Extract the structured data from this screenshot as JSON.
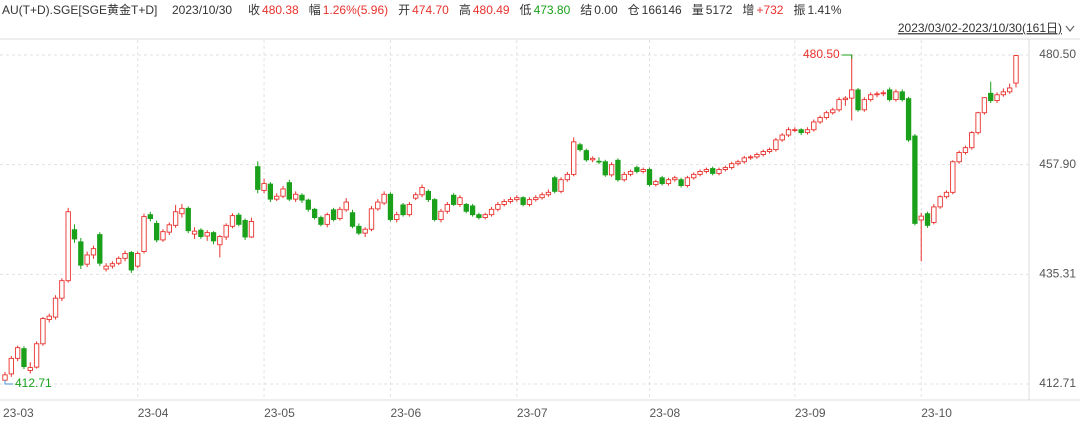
{
  "quote": {
    "symbol": "AU(T+D).SGE[SGE黄金T+D]",
    "date": "2023/10/30",
    "fields": [
      {
        "label": "收",
        "value": "480.38",
        "color": "#e8322e"
      },
      {
        "label": "幅",
        "value": "1.26%(5.96)",
        "color": "#e8322e"
      },
      {
        "label": "开",
        "value": "474.70",
        "color": "#e8322e"
      },
      {
        "label": "高",
        "value": "480.49",
        "color": "#e8322e"
      },
      {
        "label": "低",
        "value": "473.80",
        "color": "#1aa01a"
      },
      {
        "label": "结",
        "value": "0.00",
        "color": "#333333"
      },
      {
        "label": "仓",
        "value": "166146",
        "color": "#333333"
      },
      {
        "label": "量",
        "value": "5172",
        "color": "#333333"
      },
      {
        "label": "增",
        "value": "+732",
        "color": "#e8322e"
      },
      {
        "label": "振",
        "value": "1.41%",
        "color": "#333333"
      }
    ],
    "range": "2023/03/02-2023/10/30(161日)"
  },
  "chart_data": {
    "type": "candlestick",
    "up_color": "#e8322e",
    "down_color": "#1aa01a",
    "grid": true,
    "ylim": [
      409.42,
      483.58
    ],
    "yticks": [
      412.71,
      435.31,
      {
        "value": 457.9,
        "label": "457.90"
      },
      {
        "value": 480.5,
        "label": "480.50"
      }
    ],
    "max_label": {
      "value": 480.5,
      "label": "480.50"
    },
    "min_label": {
      "value": 412.71,
      "label": "412.71"
    },
    "categories": [
      "23-03",
      null,
      null,
      null,
      null,
      null,
      null,
      null,
      null,
      null,
      null,
      null,
      null,
      null,
      null,
      null,
      null,
      null,
      null,
      null,
      null,
      "23-04",
      null,
      null,
      null,
      null,
      null,
      null,
      null,
      null,
      null,
      null,
      null,
      null,
      null,
      null,
      null,
      null,
      null,
      null,
      null,
      "23-05",
      null,
      null,
      null,
      null,
      null,
      null,
      null,
      null,
      null,
      null,
      null,
      null,
      null,
      null,
      null,
      null,
      null,
      null,
      null,
      "23-06",
      null,
      null,
      null,
      null,
      null,
      null,
      null,
      null,
      null,
      null,
      null,
      null,
      null,
      null,
      null,
      null,
      null,
      null,
      null,
      "23-07",
      null,
      null,
      null,
      null,
      null,
      null,
      null,
      null,
      null,
      null,
      null,
      null,
      null,
      null,
      null,
      null,
      null,
      null,
      null,
      null,
      "23-08",
      null,
      null,
      null,
      null,
      null,
      null,
      null,
      null,
      null,
      null,
      null,
      null,
      null,
      null,
      null,
      null,
      null,
      null,
      null,
      null,
      null,
      null,
      "23-09",
      null,
      null,
      null,
      null,
      null,
      null,
      null,
      null,
      null,
      null,
      null,
      null,
      null,
      null,
      null,
      null,
      null,
      null,
      null,
      "23-10",
      null,
      null,
      null,
      null,
      null,
      null,
      null,
      null,
      null,
      null,
      null,
      null,
      null,
      null,
      null
    ],
    "ohlc": [
      [
        413.5,
        415.2,
        412.71,
        414.6
      ],
      [
        414.8,
        418.5,
        414.2,
        418.0
      ],
      [
        418.0,
        420.6,
        417.4,
        420.2
      ],
      [
        420.0,
        420.5,
        415.8,
        416.3
      ],
      [
        415.5,
        417.2,
        414.9,
        416.1
      ],
      [
        416.2,
        421.5,
        415.9,
        421.0
      ],
      [
        421.0,
        426.5,
        420.6,
        426.2
      ],
      [
        426.0,
        427.2,
        425.4,
        426.7
      ],
      [
        426.5,
        431.0,
        426.0,
        430.4
      ],
      [
        430.4,
        434.5,
        429.8,
        434.0
      ],
      [
        434.0,
        449.0,
        433.6,
        448.2
      ],
      [
        444.5,
        445.6,
        441.8,
        442.6
      ],
      [
        442.0,
        442.8,
        436.4,
        437.2
      ],
      [
        437.4,
        440.0,
        436.8,
        439.3
      ],
      [
        439.3,
        441.2,
        438.5,
        440.6
      ],
      [
        443.5,
        444.0,
        437.0,
        437.6
      ],
      [
        436.4,
        437.6,
        435.9,
        437.0
      ],
      [
        437.0,
        438.0,
        436.5,
        437.5
      ],
      [
        437.6,
        439.0,
        437.2,
        438.6
      ],
      [
        438.6,
        440.2,
        438.0,
        439.6
      ],
      [
        439.8,
        440.1,
        435.6,
        436.2
      ],
      [
        437.0,
        440.0,
        436.6,
        439.6
      ],
      [
        440.0,
        447.8,
        439.6,
        447.2
      ],
      [
        447.6,
        448.2,
        446.2,
        446.8
      ],
      [
        445.8,
        446.4,
        441.9,
        442.4
      ],
      [
        442.4,
        444.6,
        442.0,
        444.1
      ],
      [
        444.0,
        446.0,
        443.4,
        445.5
      ],
      [
        445.4,
        449.6,
        444.9,
        448.2
      ],
      [
        447.8,
        449.8,
        447.0,
        448.9
      ],
      [
        448.9,
        449.3,
        443.8,
        444.3
      ],
      [
        443.6,
        445.0,
        442.6,
        444.2
      ],
      [
        444.4,
        444.8,
        442.6,
        443.1
      ],
      [
        443.2,
        444.4,
        442.2,
        443.9
      ],
      [
        443.9,
        444.2,
        441.5,
        442.2
      ],
      [
        441.4,
        443.4,
        438.8,
        443.1
      ],
      [
        443.0,
        445.8,
        442.4,
        445.4
      ],
      [
        445.2,
        447.9,
        444.8,
        447.4
      ],
      [
        447.5,
        448.0,
        445.2,
        445.6
      ],
      [
        446.4,
        446.8,
        442.4,
        443.0
      ],
      [
        443.0,
        447.0,
        442.8,
        446.2
      ],
      [
        457.5,
        458.6,
        452.0,
        452.8
      ],
      [
        452.6,
        455.0,
        452.0,
        454.0
      ],
      [
        453.9,
        454.3,
        450.2,
        450.8
      ],
      [
        450.8,
        452.0,
        450.4,
        451.4
      ],
      [
        451.4,
        453.5,
        451.0,
        452.9
      ],
      [
        454.2,
        454.8,
        450.4,
        450.8
      ],
      [
        450.8,
        452.4,
        450.2,
        451.8
      ],
      [
        451.6,
        452.0,
        450.0,
        450.6
      ],
      [
        450.6,
        450.9,
        448.2,
        448.7
      ],
      [
        448.7,
        449.0,
        446.6,
        447.0
      ],
      [
        447.0,
        447.4,
        445.2,
        445.6
      ],
      [
        445.6,
        448.0,
        445.0,
        447.6
      ],
      [
        448.6,
        449.0,
        446.2,
        446.6
      ],
      [
        446.8,
        449.2,
        446.4,
        448.7
      ],
      [
        448.6,
        451.0,
        448.2,
        450.2
      ],
      [
        448.0,
        448.6,
        444.8,
        445.2
      ],
      [
        445.2,
        445.8,
        443.4,
        443.8
      ],
      [
        443.8,
        445.0,
        443.0,
        444.6
      ],
      [
        444.6,
        449.4,
        444.2,
        448.8
      ],
      [
        448.8,
        450.8,
        448.4,
        450.2
      ],
      [
        450.0,
        452.4,
        449.6,
        451.8
      ],
      [
        451.8,
        452.2,
        446.2,
        446.6
      ],
      [
        446.6,
        448.2,
        446.0,
        447.6
      ],
      [
        449.6,
        450.0,
        447.2,
        447.6
      ],
      [
        447.6,
        450.2,
        447.2,
        449.7
      ],
      [
        451.0,
        452.2,
        450.6,
        451.7
      ],
      [
        451.7,
        453.8,
        451.2,
        453.2
      ],
      [
        452.4,
        452.8,
        450.2,
        450.7
      ],
      [
        450.7,
        451.0,
        446.2,
        446.6
      ],
      [
        446.6,
        448.8,
        446.0,
        448.3
      ],
      [
        448.3,
        450.2,
        447.8,
        449.7
      ],
      [
        451.6,
        452.0,
        449.4,
        449.7
      ],
      [
        449.7,
        451.6,
        449.2,
        451.1
      ],
      [
        449.7,
        450.0,
        447.9,
        448.3
      ],
      [
        449.4,
        449.8,
        447.2,
        447.6
      ],
      [
        447.6,
        448.0,
        446.6,
        447.0
      ],
      [
        447.0,
        448.0,
        446.6,
        447.6
      ],
      [
        447.6,
        449.2,
        447.2,
        448.7
      ],
      [
        448.7,
        450.2,
        448.3,
        449.7
      ],
      [
        449.7,
        450.8,
        449.3,
        450.3
      ],
      [
        450.3,
        451.2,
        449.9,
        450.7
      ],
      [
        450.7,
        451.6,
        450.3,
        451.1
      ],
      [
        451.1,
        451.4,
        449.3,
        449.7
      ],
      [
        449.7,
        451.2,
        449.3,
        450.7
      ],
      [
        450.7,
        451.6,
        450.3,
        451.1
      ],
      [
        451.1,
        452.2,
        450.7,
        451.7
      ],
      [
        451.7,
        452.8,
        451.3,
        452.2
      ],
      [
        455.2,
        455.6,
        452.0,
        452.4
      ],
      [
        452.4,
        455.3,
        452.0,
        454.8
      ],
      [
        454.8,
        456.4,
        454.4,
        455.9
      ],
      [
        455.9,
        463.5,
        455.5,
        462.6
      ],
      [
        462.0,
        462.4,
        460.6,
        461.0
      ],
      [
        460.8,
        461.2,
        458.5,
        458.9
      ],
      [
        458.9,
        459.6,
        458.4,
        459.2
      ],
      [
        458.6,
        459.4,
        458.0,
        458.5
      ],
      [
        458.5,
        458.9,
        455.4,
        455.8
      ],
      [
        455.8,
        458.4,
        455.4,
        457.9
      ],
      [
        458.8,
        459.2,
        454.4,
        454.8
      ],
      [
        454.8,
        456.4,
        454.4,
        455.9
      ],
      [
        455.9,
        456.9,
        455.5,
        456.5
      ],
      [
        457.3,
        457.7,
        456.1,
        456.5
      ],
      [
        456.5,
        457.3,
        456.1,
        456.9
      ],
      [
        456.9,
        457.3,
        453.4,
        453.8
      ],
      [
        453.8,
        454.8,
        453.4,
        454.4
      ],
      [
        455.2,
        455.6,
        453.6,
        454.0
      ],
      [
        454.0,
        455.2,
        453.6,
        454.8
      ],
      [
        454.8,
        455.6,
        454.4,
        455.2
      ],
      [
        454.8,
        455.2,
        453.2,
        453.6
      ],
      [
        453.6,
        455.6,
        453.2,
        455.2
      ],
      [
        455.2,
        456.3,
        454.8,
        455.9
      ],
      [
        455.9,
        456.9,
        455.5,
        456.5
      ],
      [
        456.5,
        457.3,
        456.1,
        456.9
      ],
      [
        457.1,
        457.5,
        455.7,
        456.1
      ],
      [
        456.1,
        457.3,
        455.7,
        456.9
      ],
      [
        456.9,
        457.7,
        456.5,
        457.3
      ],
      [
        457.3,
        458.5,
        456.9,
        458.1
      ],
      [
        458.1,
        458.9,
        457.7,
        458.5
      ],
      [
        458.5,
        459.7,
        458.1,
        459.3
      ],
      [
        459.3,
        459.9,
        458.9,
        459.5
      ],
      [
        459.5,
        460.4,
        459.1,
        460.0
      ],
      [
        460.0,
        461.0,
        459.6,
        460.6
      ],
      [
        460.6,
        461.4,
        460.2,
        461.0
      ],
      [
        461.0,
        463.4,
        460.6,
        463.0
      ],
      [
        463.0,
        464.4,
        462.6,
        464.0
      ],
      [
        464.0,
        465.6,
        463.6,
        465.1
      ],
      [
        465.1,
        465.6,
        464.6,
        465.1
      ],
      [
        465.1,
        465.4,
        464.0,
        464.5
      ],
      [
        464.5,
        465.6,
        464.1,
        465.1
      ],
      [
        465.1,
        467.2,
        464.7,
        466.7
      ],
      [
        466.7,
        468.0,
        466.3,
        467.6
      ],
      [
        467.6,
        469.0,
        467.2,
        468.6
      ],
      [
        468.6,
        469.6,
        468.2,
        469.2
      ],
      [
        469.2,
        471.8,
        468.8,
        471.3
      ],
      [
        471.3,
        472.0,
        470.0,
        471.6
      ],
      [
        471.6,
        480.5,
        467.0,
        473.3
      ],
      [
        473.3,
        473.7,
        468.8,
        469.2
      ],
      [
        469.2,
        471.8,
        468.8,
        471.3
      ],
      [
        471.3,
        472.8,
        470.9,
        472.3
      ],
      [
        472.3,
        473.0,
        471.8,
        472.5
      ],
      [
        472.5,
        473.2,
        472.0,
        472.7
      ],
      [
        473.3,
        473.8,
        470.9,
        471.3
      ],
      [
        471.3,
        473.4,
        470.9,
        472.9
      ],
      [
        472.9,
        473.4,
        470.9,
        471.3
      ],
      [
        471.5,
        471.9,
        462.6,
        463.0
      ],
      [
        463.8,
        464.2,
        445.4,
        445.8
      ],
      [
        446.5,
        448.0,
        438.0,
        447.3
      ],
      [
        447.8,
        448.2,
        444.9,
        445.4
      ],
      [
        446.0,
        449.8,
        445.6,
        449.2
      ],
      [
        449.2,
        451.6,
        448.8,
        451.3
      ],
      [
        451.3,
        452.6,
        450.9,
        452.2
      ],
      [
        452.2,
        458.8,
        451.8,
        458.5
      ],
      [
        458.5,
        460.8,
        458.1,
        460.4
      ],
      [
        460.4,
        461.8,
        460.0,
        461.4
      ],
      [
        461.4,
        464.8,
        461.0,
        464.5
      ],
      [
        464.5,
        468.8,
        464.1,
        468.6
      ],
      [
        468.6,
        471.8,
        468.2,
        471.7
      ],
      [
        472.6,
        475.0,
        470.6,
        471.1
      ],
      [
        471.1,
        472.8,
        470.6,
        472.3
      ],
      [
        472.3,
        473.6,
        471.9,
        472.9
      ],
      [
        472.9,
        474.6,
        472.5,
        473.7
      ],
      [
        474.7,
        480.49,
        473.8,
        480.38
      ]
    ]
  }
}
